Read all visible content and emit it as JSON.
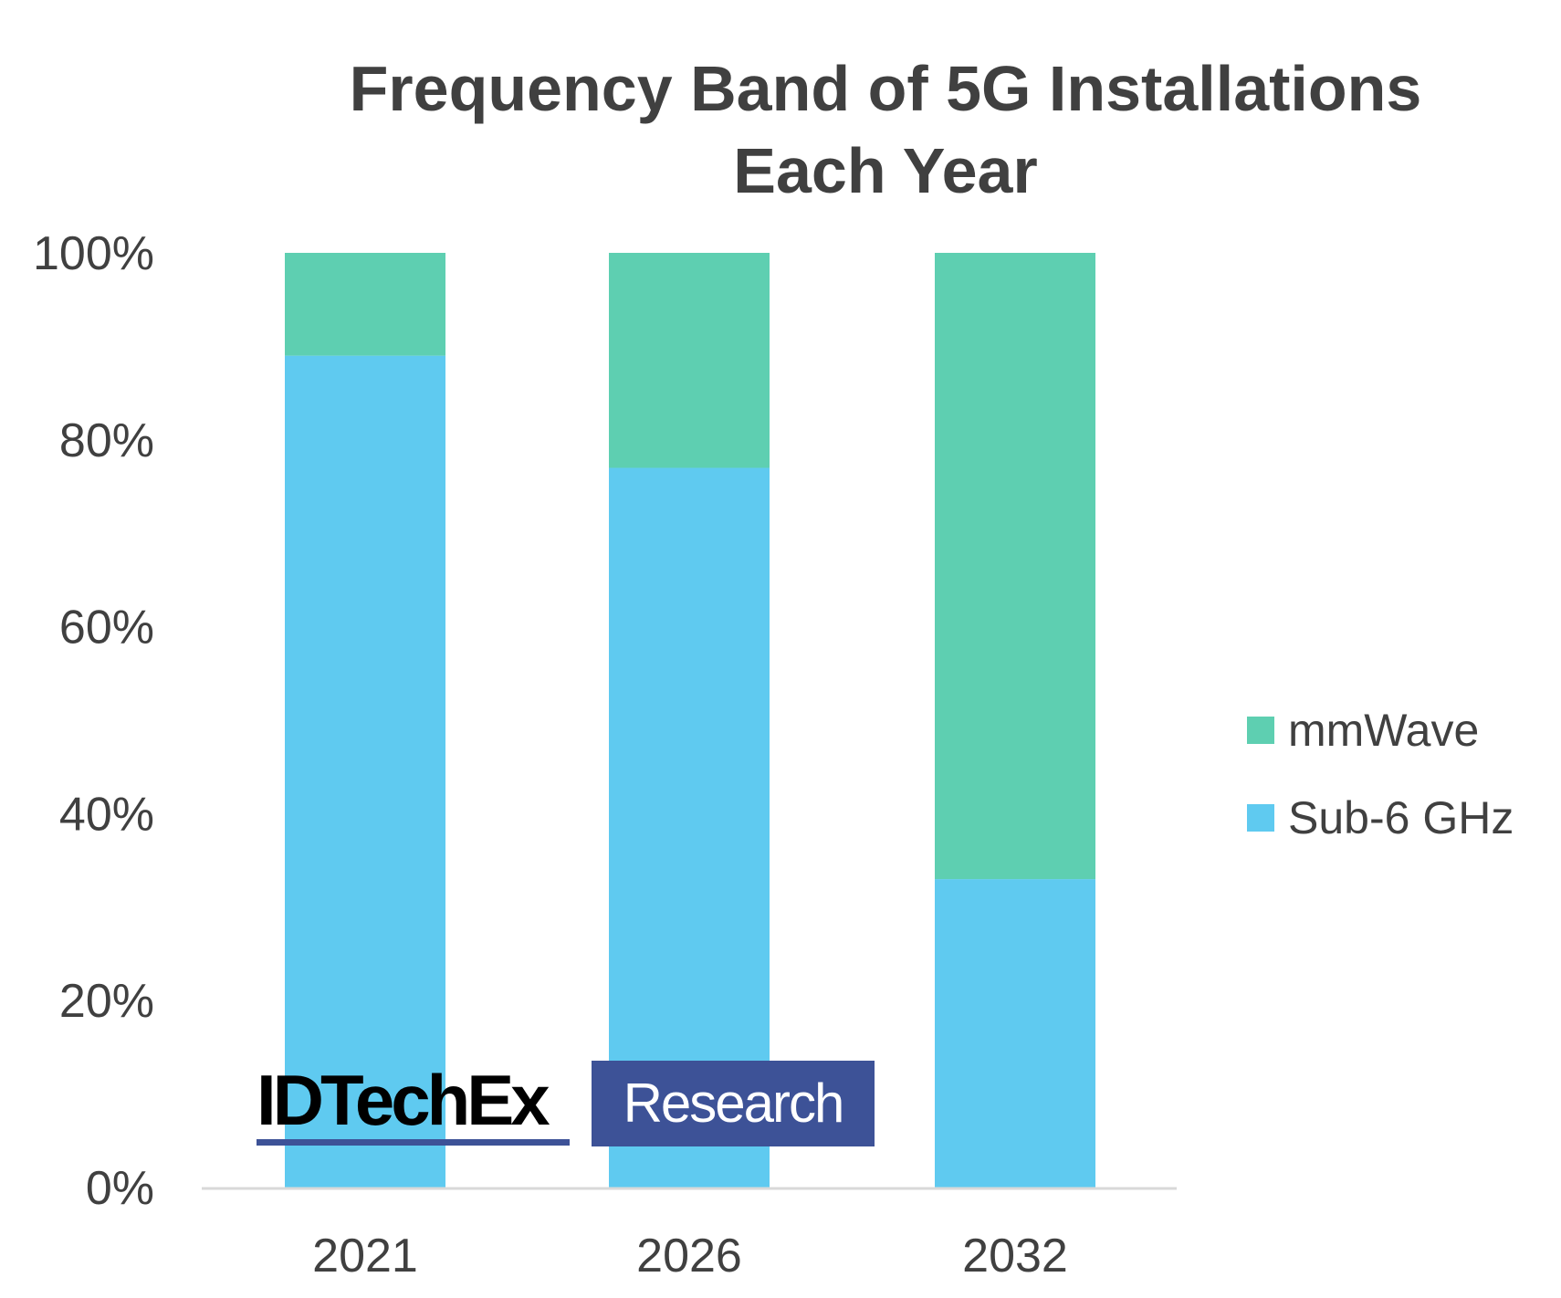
{
  "chart_data": {
    "type": "bar",
    "stacked": true,
    "title": "Frequency Band of 5G Installations Each Year",
    "title_lines": [
      "Frequency Band of 5G Installations",
      "Each Year"
    ],
    "categories": [
      "2021",
      "2026",
      "2032"
    ],
    "series": [
      {
        "name": "Sub-6 GHz",
        "values": [
          89,
          77,
          33
        ],
        "color": "#5FCAF0"
      },
      {
        "name": "mmWave",
        "values": [
          11,
          23,
          67
        ],
        "color": "#5ECFB1"
      }
    ],
    "ylim": [
      0,
      100
    ],
    "yticks": [
      "0%",
      "20%",
      "40%",
      "60%",
      "80%",
      "100%"
    ],
    "xlabel": "",
    "ylabel": "",
    "grid": false,
    "legend_position": "right"
  },
  "legend": [
    {
      "label": "mmWave",
      "color": "#5ECFB1"
    },
    {
      "label": "Sub-6 GHz",
      "color": "#5FCAF0"
    }
  ],
  "watermark": {
    "brand": "IDTechEx",
    "tag": "Research",
    "color": "#3D5297"
  }
}
